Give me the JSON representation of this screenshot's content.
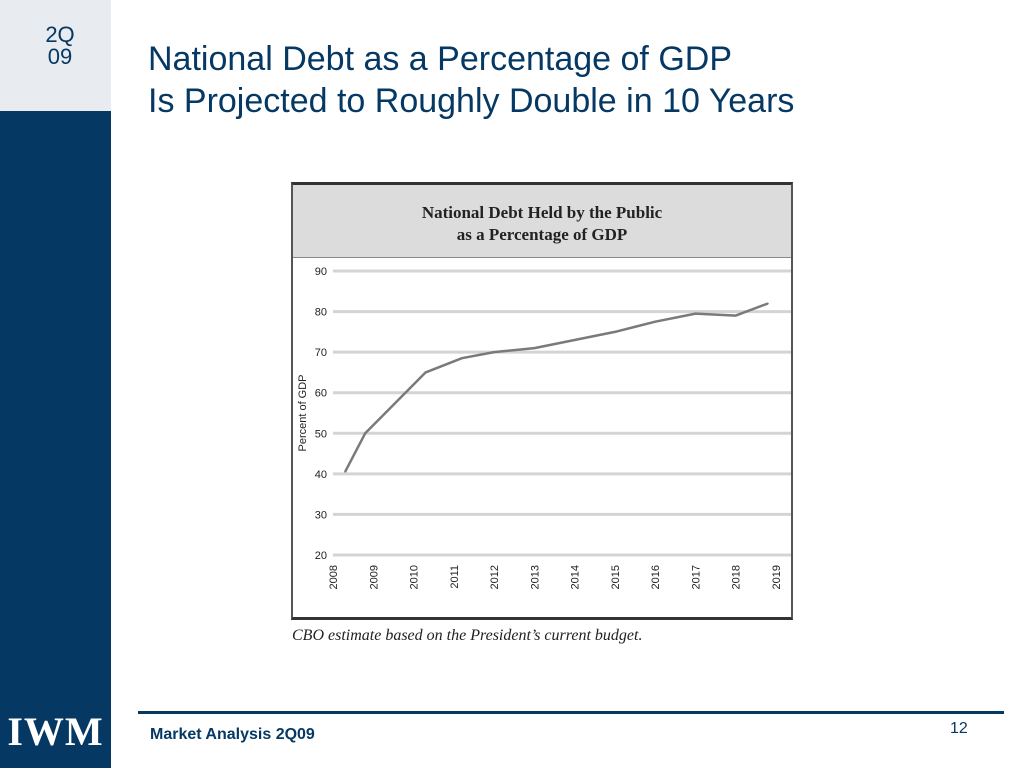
{
  "slide": {
    "quarter_line1": "2Q",
    "quarter_line2": "09",
    "logo": "IWM",
    "title_line1": "National Debt as a Percentage of GDP",
    "title_line2": "Is Projected to Roughly Double in 10 Years",
    "caption": "CBO estimate based on the President’s current budget.",
    "footer": "Market Analysis 2Q09",
    "page_number": "12",
    "colors": {
      "brand": "#063864",
      "sidebar_top": "#e8ebef"
    }
  },
  "chart_data": {
    "type": "line",
    "title": "National Debt Held by the Public as a Percentage of GDP",
    "title_line1": "National Debt Held by the Public",
    "title_line2": "as a Percentage of GDP",
    "ylabel": "Percent of GDP",
    "xlabel": "",
    "ylim": [
      20,
      90
    ],
    "yticks": [
      20,
      30,
      40,
      50,
      60,
      70,
      80,
      90
    ],
    "xticks": [
      "2008",
      "2009",
      "2010",
      "2011",
      "2012",
      "2013",
      "2014",
      "2015",
      "2016",
      "2017",
      "2018",
      "2019"
    ],
    "xlim": [
      2008,
      2019
    ],
    "grid": true,
    "series": [
      {
        "x": [
          2008.3,
          2008.8,
          2009.5,
          2010.3,
          2011.2,
          2012.0,
          2013.0,
          2014.0,
          2015.0,
          2016.0,
          2017.0,
          2018.0,
          2018.8
        ],
        "values": [
          40.5,
          50,
          57,
          65,
          68.5,
          70,
          71,
          73,
          75,
          77.5,
          79.5,
          79,
          82
        ]
      }
    ]
  }
}
